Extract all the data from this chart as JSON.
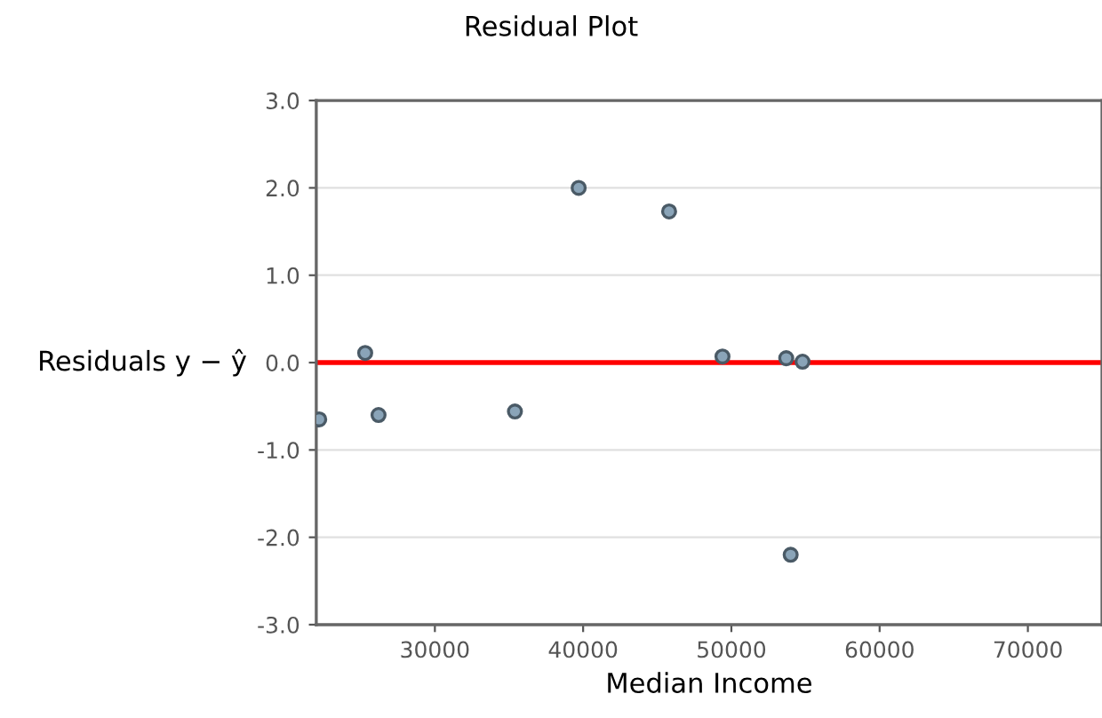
{
  "chart_data": {
    "type": "scatter",
    "title": "Residual Plot",
    "xlabel": "Median Income",
    "ylabel": "Residuals y − ŷ",
    "x": [
      22200,
      25300,
      26200,
      35400,
      39700,
      45800,
      49400,
      53700,
      54800,
      54000
    ],
    "series": [
      {
        "color": "#8aa4b8",
        "values": [
          -0.65,
          0.11,
          -0.6,
          -0.56,
          2.0,
          1.73,
          0.07,
          0.05,
          0.01,
          -2.2
        ]
      }
    ],
    "xlim": [
      22000,
      75000
    ],
    "xticks": [
      30000,
      40000,
      50000,
      60000,
      70000
    ],
    "ylim": [
      -3,
      3
    ],
    "yticks": [
      {
        "value": -3,
        "label": "-3.0"
      },
      {
        "value": -2,
        "label": "-2.0"
      },
      {
        "value": -1,
        "label": "-1.0"
      },
      {
        "value": 0,
        "label": "0.0"
      },
      {
        "value": 1,
        "label": "1.0"
      },
      {
        "value": 2,
        "label": "2.0"
      },
      {
        "value": 3,
        "label": "3.0"
      }
    ],
    "ref_lines": [
      {
        "axis": "y",
        "value": 0,
        "color": "#ff0000"
      }
    ],
    "grid": "y",
    "marker": "circle"
  }
}
